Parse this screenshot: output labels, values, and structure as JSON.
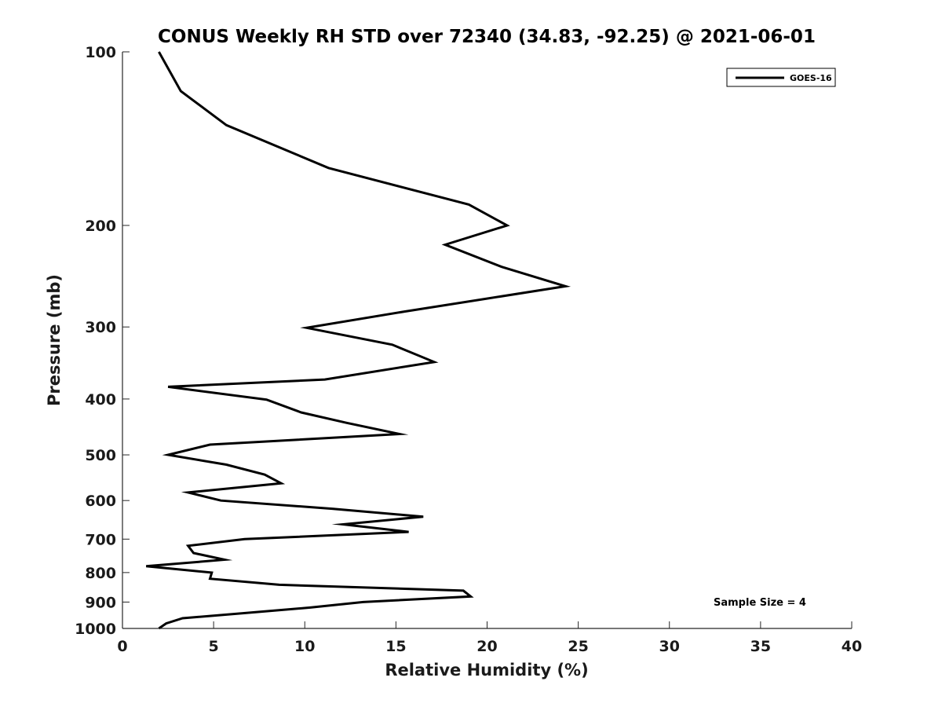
{
  "chart_data": {
    "type": "line",
    "title": "CONUS Weekly RH STD over 72340 (34.83, -92.25) @ 2021-06-01",
    "xlabel": "Relative Humidity (%)",
    "ylabel": "Pressure (mb)",
    "xlim": [
      0,
      40
    ],
    "ylim": [
      1000,
      100
    ],
    "y_scale": "log",
    "y_reversed": true,
    "x_ticks": [
      0,
      5,
      10,
      15,
      20,
      25,
      30,
      35,
      40
    ],
    "y_ticks": [
      100,
      200,
      300,
      400,
      500,
      600,
      700,
      800,
      900,
      1000
    ],
    "grid": false,
    "legend_position": "top-right",
    "annotation": "Sample Size = 4",
    "series": [
      {
        "name": "GOES-16",
        "color": "#000000",
        "points": [
          [
            2.0,
            100
          ],
          [
            3.2,
            117
          ],
          [
            5.7,
            134
          ],
          [
            11.3,
            159
          ],
          [
            19.0,
            184
          ],
          [
            21.1,
            200
          ],
          [
            17.7,
            216
          ],
          [
            20.8,
            236
          ],
          [
            24.3,
            255
          ],
          [
            15.5,
            282
          ],
          [
            10.1,
            301
          ],
          [
            14.8,
            322
          ],
          [
            17.1,
            345
          ],
          [
            11.1,
            370
          ],
          [
            2.5,
            381
          ],
          [
            7.9,
            401
          ],
          [
            9.8,
            422
          ],
          [
            12.3,
            440
          ],
          [
            15.2,
            460
          ],
          [
            4.8,
            480
          ],
          [
            2.5,
            500
          ],
          [
            5.7,
            520
          ],
          [
            7.8,
            541
          ],
          [
            8.7,
            560
          ],
          [
            3.6,
            581
          ],
          [
            5.4,
            600
          ],
          [
            11.5,
            620
          ],
          [
            16.5,
            640
          ],
          [
            12.1,
            660
          ],
          [
            15.7,
            680
          ],
          [
            6.7,
            700
          ],
          [
            3.6,
            719
          ],
          [
            3.9,
            740
          ],
          [
            5.6,
            760
          ],
          [
            1.3,
            780
          ],
          [
            4.9,
            800
          ],
          [
            4.8,
            820
          ],
          [
            8.6,
            840
          ],
          [
            18.7,
            860
          ],
          [
            19.1,
            880
          ],
          [
            13.2,
            900
          ],
          [
            10.3,
            920
          ],
          [
            6.8,
            940
          ],
          [
            3.3,
            960
          ],
          [
            2.4,
            980
          ],
          [
            2.0,
            1000
          ]
        ]
      }
    ]
  }
}
